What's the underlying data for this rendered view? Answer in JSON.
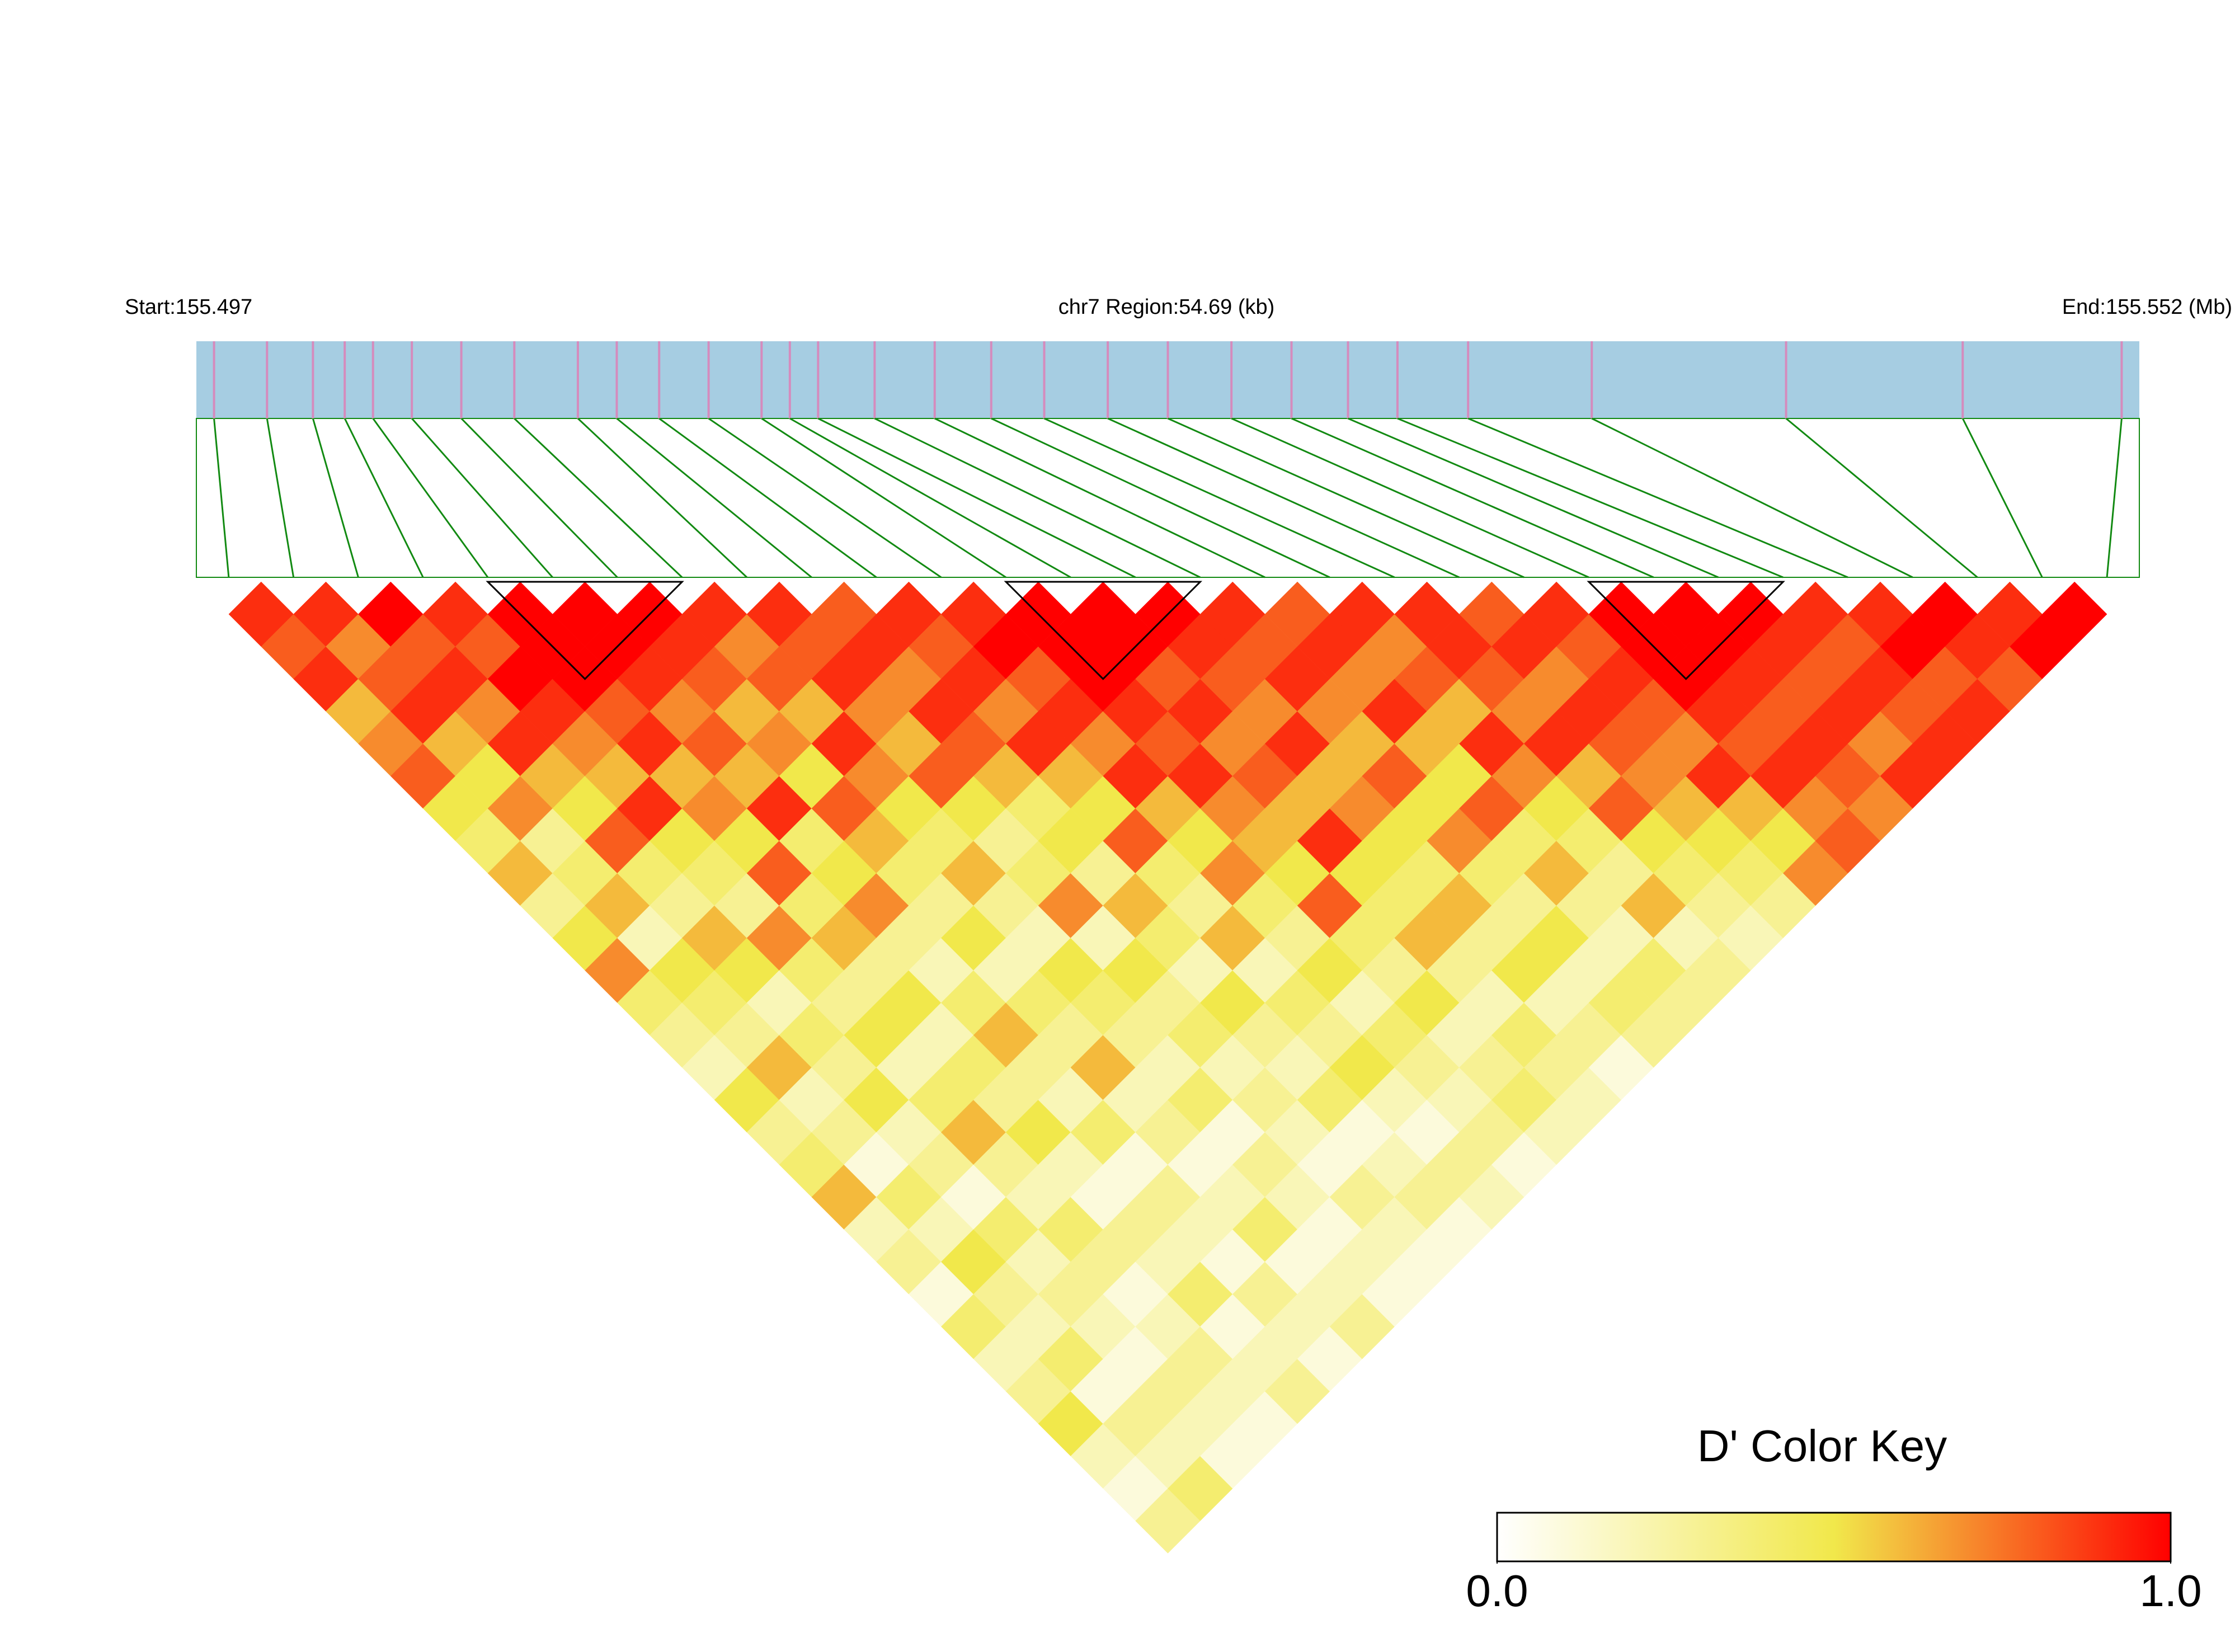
{
  "chart_data": {
    "type": "ld_heatmap",
    "start_label": "Start:155.497",
    "region_label": "chr7 Region:54.69 (kb)",
    "end_label": "End:155.552 (Mb)",
    "xlim": [
      155.497,
      155.552
    ],
    "snp_positions": [
      155.4975,
      155.499,
      155.5003,
      155.5012,
      155.502,
      155.5031,
      155.5045,
      155.506,
      155.5078,
      155.5089,
      155.5101,
      155.5115,
      155.513,
      155.5138,
      155.5146,
      155.5162,
      155.5179,
      155.5195,
      155.521,
      155.5228,
      155.5245,
      155.5263,
      155.528,
      155.5296,
      155.531,
      155.533,
      155.5365,
      155.542,
      155.547,
      155.5515
    ],
    "ld_matrix": [
      [
        0.9,
        0.8,
        0.9,
        0.6,
        0.7,
        0.8,
        0.5,
        0.4,
        0.6,
        0.3,
        0.5,
        0.7,
        0.4,
        0.3,
        0.2,
        0.5,
        0.3,
        0.4,
        0.6,
        0.2,
        0.3,
        0.1,
        0.4,
        0.2,
        0.3,
        0.5,
        0.2,
        0.1,
        0.3
      ],
      [
        0.9,
        0.7,
        0.8,
        0.9,
        0.6,
        0.5,
        0.7,
        0.3,
        0.4,
        0.6,
        0.2,
        0.5,
        0.4,
        0.3,
        0.6,
        0.2,
        0.3,
        0.1,
        0.4,
        0.2,
        0.5,
        0.3,
        0.2,
        0.4,
        0.1,
        0.3,
        0.2,
        0.4
      ],
      [
        1,
        0.8,
        0.9,
        0.7,
        0.9,
        0.6,
        0.5,
        0.8,
        0.4,
        0.3,
        0.6,
        0.5,
        0.2,
        0.4,
        0.3,
        0.5,
        0.2,
        0.3,
        0.1,
        0.4,
        0.2,
        0.3,
        0.2,
        0.1,
        0.3,
        0.2,
        0.1
      ],
      [
        0.9,
        0.8,
        1,
        0.9,
        0.7,
        0.6,
        0.9,
        0.5,
        0.4,
        0.3,
        0.7,
        0.4,
        0.3,
        0.5,
        0.2,
        0.4,
        0.6,
        0.3,
        0.2,
        0.4,
        0.3,
        0.1,
        0.2,
        0.3,
        0.2,
        0.1
      ],
      [
        1,
        1,
        1,
        0.8,
        0.9,
        0.6,
        0.7,
        0.5,
        0.8,
        0.4,
        0.6,
        0.3,
        0.5,
        0.2,
        0.4,
        0.3,
        0.5,
        0.2,
        0.1,
        0.3,
        0.2,
        0.4,
        0.1,
        0.2,
        0.3
      ],
      [
        1,
        1,
        0.9,
        0.7,
        0.8,
        0.6,
        0.9,
        0.4,
        0.5,
        0.7,
        0.3,
        0.2,
        0.4,
        0.6,
        0.3,
        0.2,
        0.4,
        0.1,
        0.3,
        0.2,
        0.1,
        0.3,
        0.2,
        0.1
      ],
      [
        1,
        0.9,
        0.8,
        0.6,
        0.7,
        0.5,
        0.8,
        0.6,
        0.4,
        0.3,
        0.5,
        0.2,
        0.4,
        0.3,
        0.6,
        0.2,
        0.3,
        0.1,
        0.2,
        0.4,
        0.1,
        0.2,
        0.3
      ],
      [
        0.9,
        0.7,
        0.8,
        0.6,
        0.9,
        0.7,
        0.5,
        0.4,
        0.6,
        0.3,
        0.2,
        0.5,
        0.4,
        0.3,
        0.2,
        0.4,
        0.1,
        0.3,
        0.2,
        0.1,
        0.2,
        0.1
      ],
      [
        0.9,
        0.8,
        0.9,
        0.7,
        0.6,
        0.8,
        0.5,
        0.3,
        0.4,
        0.7,
        0.2,
        0.5,
        0.3,
        0.4,
        0.2,
        0.3,
        0.2,
        0.1,
        0.3,
        0.2,
        0.1
      ],
      [
        0.8,
        0.9,
        0.7,
        0.9,
        0.8,
        0.6,
        0.4,
        0.5,
        0.3,
        0.6,
        0.4,
        0.2,
        0.5,
        0.3,
        0.2,
        0.4,
        0.1,
        0.2,
        0.3,
        0.1
      ],
      [
        0.9,
        0.8,
        0.9,
        0.7,
        0.9,
        0.6,
        0.5,
        0.8,
        0.4,
        0.3,
        0.6,
        0.2,
        0.4,
        0.3,
        0.5,
        0.2,
        0.1,
        0.3,
        0.2
      ],
      [
        0.9,
        1,
        0.8,
        0.9,
        0.7,
        0.9,
        0.6,
        0.5,
        0.7,
        0.4,
        0.3,
        0.5,
        0.2,
        0.4,
        0.3,
        0.2,
        0.3,
        0.1
      ],
      [
        1,
        1,
        1,
        0.9,
        0.8,
        0.9,
        0.7,
        0.6,
        0.5,
        0.8,
        0.4,
        0.3,
        0.5,
        0.2,
        0.3,
        0.4,
        0.2
      ],
      [
        1,
        1,
        0.8,
        0.9,
        0.7,
        0.8,
        0.6,
        0.9,
        0.5,
        0.4,
        0.6,
        0.3,
        0.2,
        0.4,
        0.3,
        0.2
      ],
      [
        1,
        0.9,
        0.8,
        0.7,
        0.9,
        0.6,
        0.7,
        0.5,
        0.4,
        0.6,
        0.3,
        0.5,
        0.2,
        0.3,
        0.1
      ],
      [
        0.9,
        0.8,
        0.9,
        0.7,
        0.6,
        0.8,
        0.5,
        0.7,
        0.4,
        0.3,
        0.5,
        0.2,
        0.4,
        0.3
      ],
      [
        0.8,
        0.9,
        0.7,
        0.9,
        0.6,
        0.5,
        0.8,
        0.4,
        0.6,
        0.3,
        0.2,
        0.4,
        0.3
      ],
      [
        0.9,
        0.7,
        0.8,
        0.6,
        0.9,
        0.7,
        0.5,
        0.4,
        0.3,
        0.6,
        0.2,
        0.3
      ],
      [
        0.9,
        0.9,
        0.8,
        0.7,
        0.9,
        0.6,
        0.8,
        0.5,
        0.4,
        0.3,
        0.2
      ],
      [
        0.8,
        0.9,
        0.7,
        0.9,
        0.8,
        0.7,
        0.6,
        0.5,
        0.4,
        0.3
      ],
      [
        0.9,
        0.8,
        0.9,
        0.8,
        0.7,
        0.9,
        0.6,
        0.5,
        0.7
      ],
      [
        1,
        1,
        1,
        0.9,
        0.8,
        0.9,
        0.7,
        0.8
      ],
      [
        1,
        1,
        0.9,
        0.8,
        0.9,
        0.8,
        0.7
      ],
      [
        1,
        0.9,
        0.8,
        0.9,
        0.7,
        0.9
      ],
      [
        0.9,
        0.8,
        0.9,
        0.8,
        0.9
      ],
      [
        0.9,
        1,
        0.8,
        0.9
      ],
      [
        1,
        0.9,
        0.8
      ],
      [
        0.9,
        1
      ],
      [
        1
      ]
    ],
    "blocks": [
      [
        4,
        7
      ],
      [
        12,
        15
      ],
      [
        21,
        24
      ]
    ],
    "bar_color": "#a6cde2",
    "snp_line_color": "#d58bbd",
    "connector_color": "#128a12",
    "color_stops": [
      "#ffffff",
      "#f1e84b",
      "#ff0000"
    ],
    "key_title": "D' Color Key",
    "key_lim": [
      0,
      1
    ],
    "key_ticks": [
      {
        "value": 0,
        "label": "0.0"
      },
      {
        "value": 1,
        "label": "1.0"
      }
    ]
  }
}
